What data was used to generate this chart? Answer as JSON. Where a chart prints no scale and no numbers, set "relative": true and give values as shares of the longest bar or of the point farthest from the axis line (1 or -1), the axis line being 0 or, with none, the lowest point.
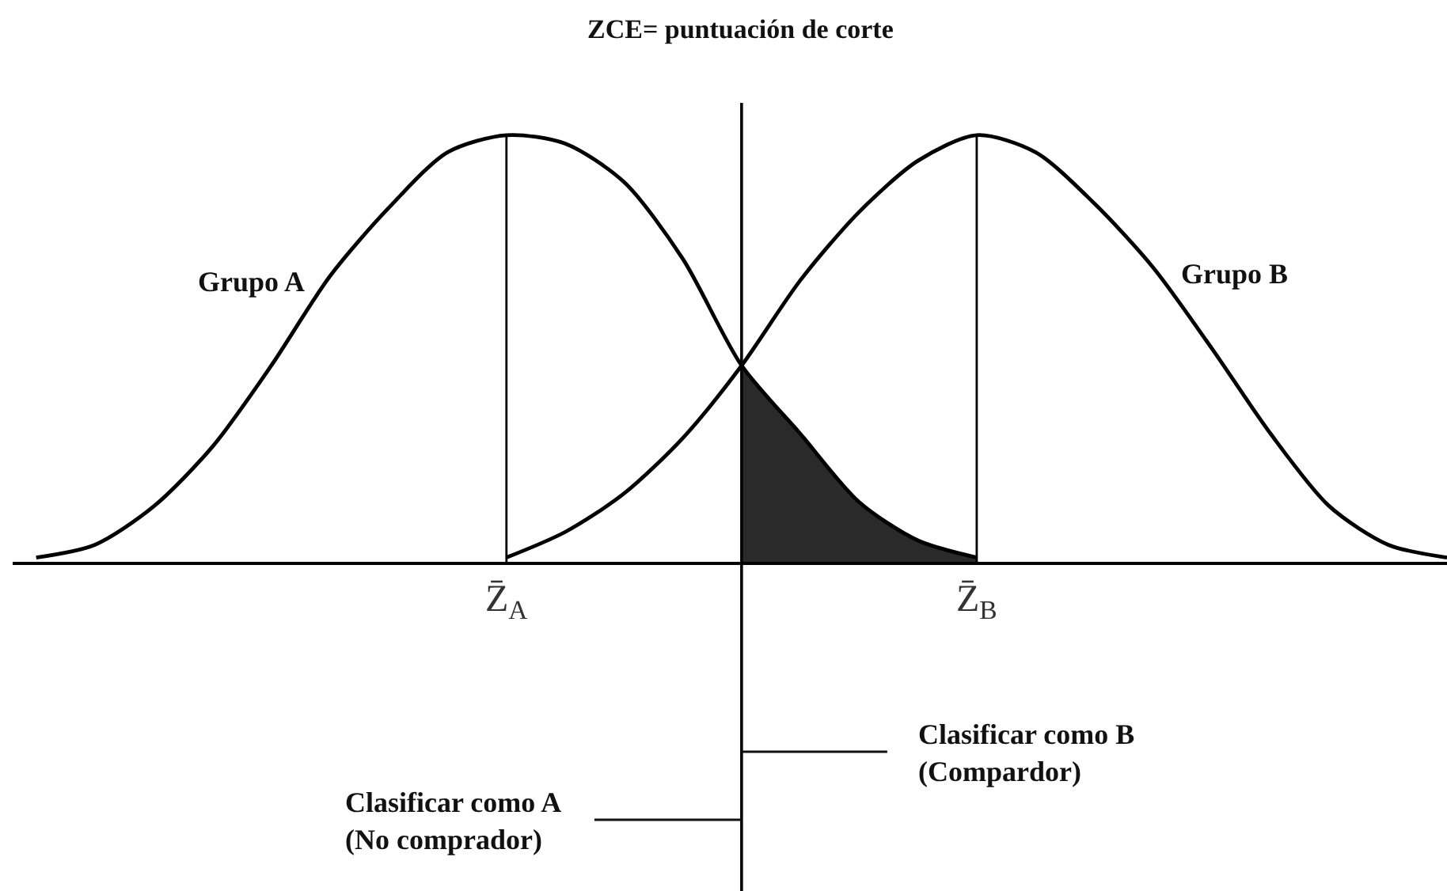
{
  "chart_data": {
    "type": "line",
    "relative": true,
    "title": "ZCE= puntuación de corte",
    "categories": [
      null,
      null,
      null,
      null,
      null,
      null,
      null,
      null,
      "Z̄$_{A}$",
      null,
      null,
      null,
      null,
      null,
      null,
      null,
      "Z̄$_{B}$",
      null,
      null,
      null,
      null,
      null,
      null,
      null,
      null
    ],
    "tick_labels": "x",
    "series": [
      {
        "type": "area",
        "color": "#2a2a2a",
        "values": [
          null,
          null,
          null,
          null,
          null,
          null,
          null,
          null,
          null,
          null,
          null,
          null,
          0.46,
          0.3,
          0.14,
          0.05,
          0.01,
          null,
          null,
          null,
          null,
          null,
          null,
          null,
          null
        ]
      },
      {
        "name": "Grupo A",
        "color": "#000000",
        "values": [
          0.01,
          0.04,
          0.13,
          0.27,
          0.46,
          0.67,
          0.83,
          0.96,
          1,
          0.98,
          0.89,
          0.71,
          0.46,
          0.3,
          0.14,
          0.05,
          0.01,
          null,
          null,
          null,
          null,
          null,
          null,
          null,
          null
        ]
      },
      {
        "name": "Grupo B",
        "color": "#000000",
        "values": [
          null,
          null,
          null,
          null,
          null,
          null,
          null,
          null,
          0.01,
          0.07,
          0.16,
          0.29,
          0.46,
          0.66,
          0.82,
          0.94,
          1,
          0.96,
          0.84,
          0.69,
          0.5,
          0.3,
          0.13,
          0.04,
          0.01
        ]
      }
    ],
    "ref_lines": [
      {
        "axis": "x",
        "value": "Z̄$_{A}$"
      },
      {
        "axis": "x",
        "value": "Z̄$_{B}$"
      }
    ],
    "annotations": [
      "Clasificar como B\n(Compardor)",
      "Clasificar como A\n(No comprador)"
    ],
    "line_style": "solid"
  }
}
